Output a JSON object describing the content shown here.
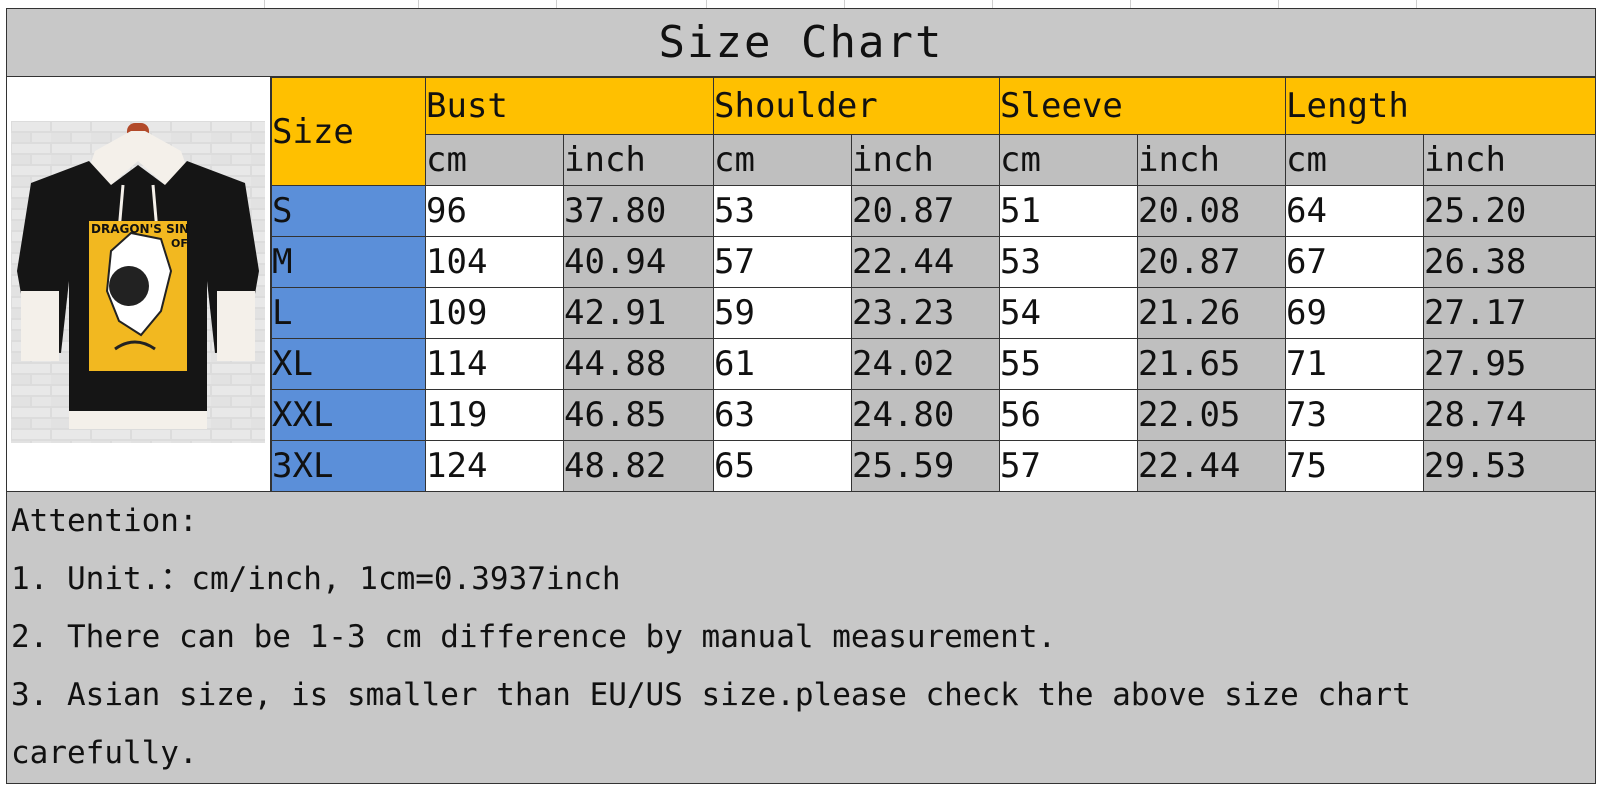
{
  "title": "Size Chart",
  "product_image": {
    "icon": "hoodie-product-photo",
    "print_text": "DRAGON'S SIN",
    "print_text2": "OF"
  },
  "header": {
    "size_label": "Size",
    "groups": [
      "Bust",
      "Shoulder",
      "Sleeve",
      "Length"
    ],
    "units": [
      "cm",
      "inch",
      "cm",
      "inch",
      "cm",
      "inch",
      "cm",
      "inch"
    ]
  },
  "rows": [
    {
      "size": "S",
      "values": [
        "96",
        "37.80",
        "53",
        "20.87",
        "51",
        "20.08",
        "64",
        "25.20"
      ]
    },
    {
      "size": "M",
      "values": [
        "104",
        "40.94",
        "57",
        "22.44",
        "53",
        "20.87",
        "67",
        "26.38"
      ]
    },
    {
      "size": "L",
      "values": [
        "109",
        "42.91",
        "59",
        "23.23",
        "54",
        "21.26",
        "69",
        "27.17"
      ]
    },
    {
      "size": "XL",
      "values": [
        "114",
        "44.88",
        "61",
        "24.02",
        "55",
        "21.65",
        "71",
        "27.95"
      ]
    },
    {
      "size": "XXL",
      "values": [
        "119",
        "46.85",
        "63",
        "24.80",
        "56",
        "22.05",
        "73",
        "28.74"
      ]
    },
    {
      "size": "3XL",
      "values": [
        "124",
        "48.82",
        "65",
        "25.59",
        "57",
        "22.44",
        "75",
        "29.53"
      ]
    }
  ],
  "notes": {
    "heading": "Attention:",
    "lines": [
      "1. Unit.：cm/inch, 1cm=0.3937inch",
      "2. There can be 1-3 cm difference by manual measurement.",
      "3. Asian size, is smaller than EU/US size.please check the above size chart",
      "carefully."
    ]
  },
  "colors": {
    "header_yellow": "#ffc000",
    "size_blue": "#5b8fd9",
    "inch_gray": "#bfbfbf",
    "sheet_gray": "#c8c8c8"
  }
}
